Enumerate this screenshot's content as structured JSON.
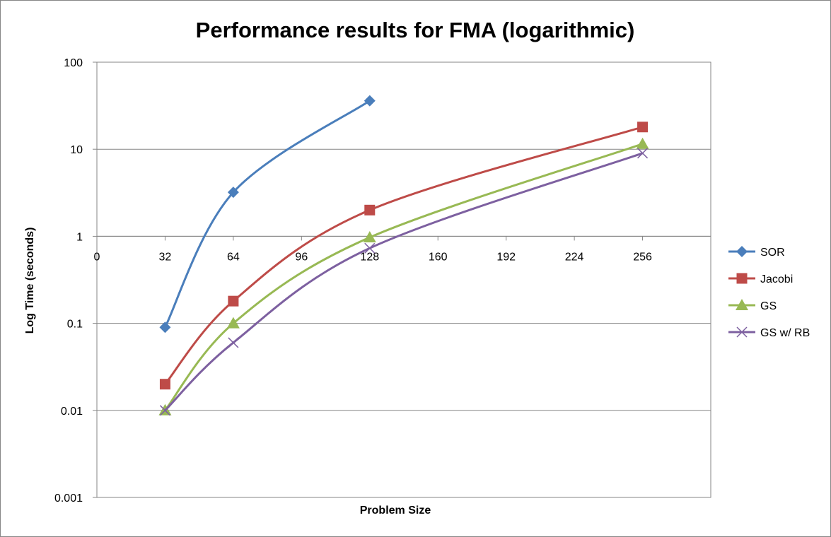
{
  "chart_data": {
    "type": "line",
    "title": "Performance results for FMA (logarithmic)",
    "xlabel": "Problem Size",
    "ylabel": "Log Time (seconds)",
    "xlim": [
      0,
      288
    ],
    "ylim": [
      0.001,
      100
    ],
    "yscale": "log",
    "x_ticks": [
      0,
      32,
      64,
      96,
      128,
      160,
      192,
      224,
      256
    ],
    "x_tick_labels": [
      "0",
      "32",
      "64",
      "96",
      "128",
      "160",
      "192",
      "224",
      "256"
    ],
    "y_ticks": [
      100,
      10,
      1,
      0.1,
      0.01,
      0.001
    ],
    "y_tick_labels": [
      "100",
      "10",
      "1",
      "0.1",
      "0.01",
      "0.001"
    ],
    "x_axis_crosses_at": 1,
    "grid": "horizontal",
    "smooth": true,
    "legend_position": "right",
    "series": [
      {
        "name": "SOR",
        "color": "#4a7ebb",
        "marker": "diamond",
        "x": [
          32,
          64,
          128
        ],
        "y": [
          0.09,
          3.2,
          36
        ]
      },
      {
        "name": "Jacobi",
        "color": "#be4b48",
        "marker": "square",
        "x": [
          32,
          64,
          128,
          256
        ],
        "y": [
          0.02,
          0.18,
          2,
          18
        ]
      },
      {
        "name": "GS",
        "color": "#98b954",
        "marker": "triangle",
        "x": [
          32,
          64,
          128,
          256
        ],
        "y": [
          0.01,
          0.1,
          0.97,
          11.5
        ]
      },
      {
        "name": "GS w/ RB",
        "color": "#7d60a0",
        "marker": "x",
        "x": [
          32,
          64,
          128,
          256
        ],
        "y": [
          0.01,
          0.06,
          0.73,
          9
        ]
      }
    ]
  }
}
